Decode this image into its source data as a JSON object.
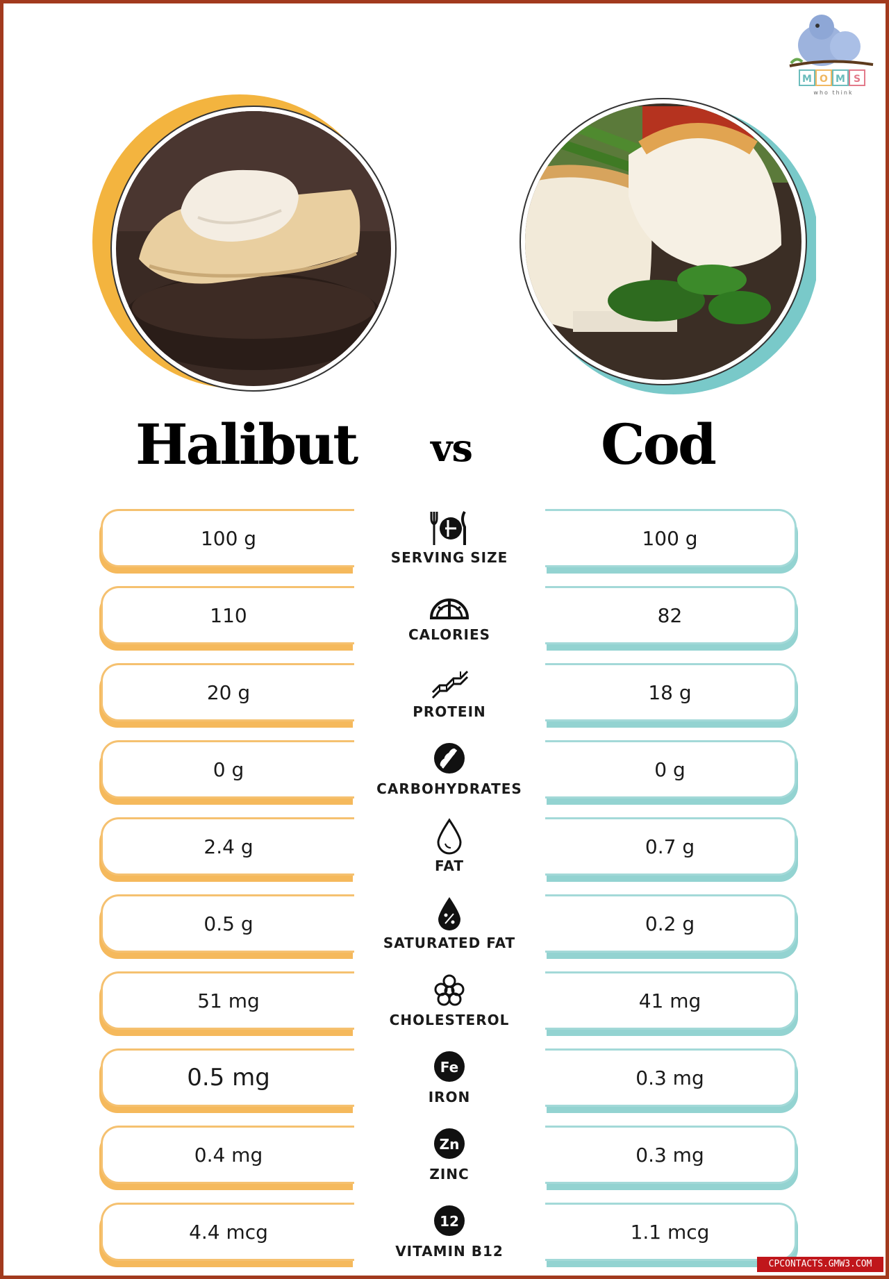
{
  "brand": {
    "logo_letters": "MOMS",
    "logo_tagline": "who think"
  },
  "header": {
    "left_title": "Halibut",
    "vs": "vs",
    "right_title": "Cod"
  },
  "colors": {
    "left_accent": "#f5b95c",
    "right_accent": "#93d3d1",
    "border": "#a23a1e"
  },
  "rows": [
    {
      "label": "SERVING SIZE",
      "icon": "utensils-plate-icon",
      "halibut": "100 g",
      "cod": "100 g"
    },
    {
      "label": "CALORIES",
      "icon": "gauge-icon",
      "halibut": "110",
      "cod": "82"
    },
    {
      "label": "PROTEIN",
      "icon": "protein-chain-icon",
      "halibut": "20 g",
      "cod": "18 g"
    },
    {
      "label": "CARBOHYDRATES",
      "icon": "wheat-icon",
      "halibut": "0 g",
      "cod": "0 g"
    },
    {
      "label": "FAT",
      "icon": "drop-icon",
      "halibut": "2.4 g",
      "cod": "0.7 g"
    },
    {
      "label": "SATURATED FAT",
      "icon": "percent-drop-icon",
      "halibut": "0.5 g",
      "cod": "0.2 g"
    },
    {
      "label": "CHOLESTEROL",
      "icon": "molecule-icon",
      "halibut": "51 mg",
      "cod": "41 mg"
    },
    {
      "label": "IRON",
      "icon": "iron-fe-icon",
      "symbol": "Fe",
      "halibut": "0.5 mg",
      "cod": "0.3 mg"
    },
    {
      "label": "ZINC",
      "icon": "zinc-zn-icon",
      "symbol": "Zn",
      "halibut": "0.4 mg",
      "cod": "0.3 mg"
    },
    {
      "label": "VITAMIN B12",
      "icon": "b12-icon",
      "symbol": "12",
      "halibut": "4.4 mcg",
      "cod": "1.1 mcg"
    }
  ],
  "watermark": "CPCONTACTS.GMW3.COM"
}
